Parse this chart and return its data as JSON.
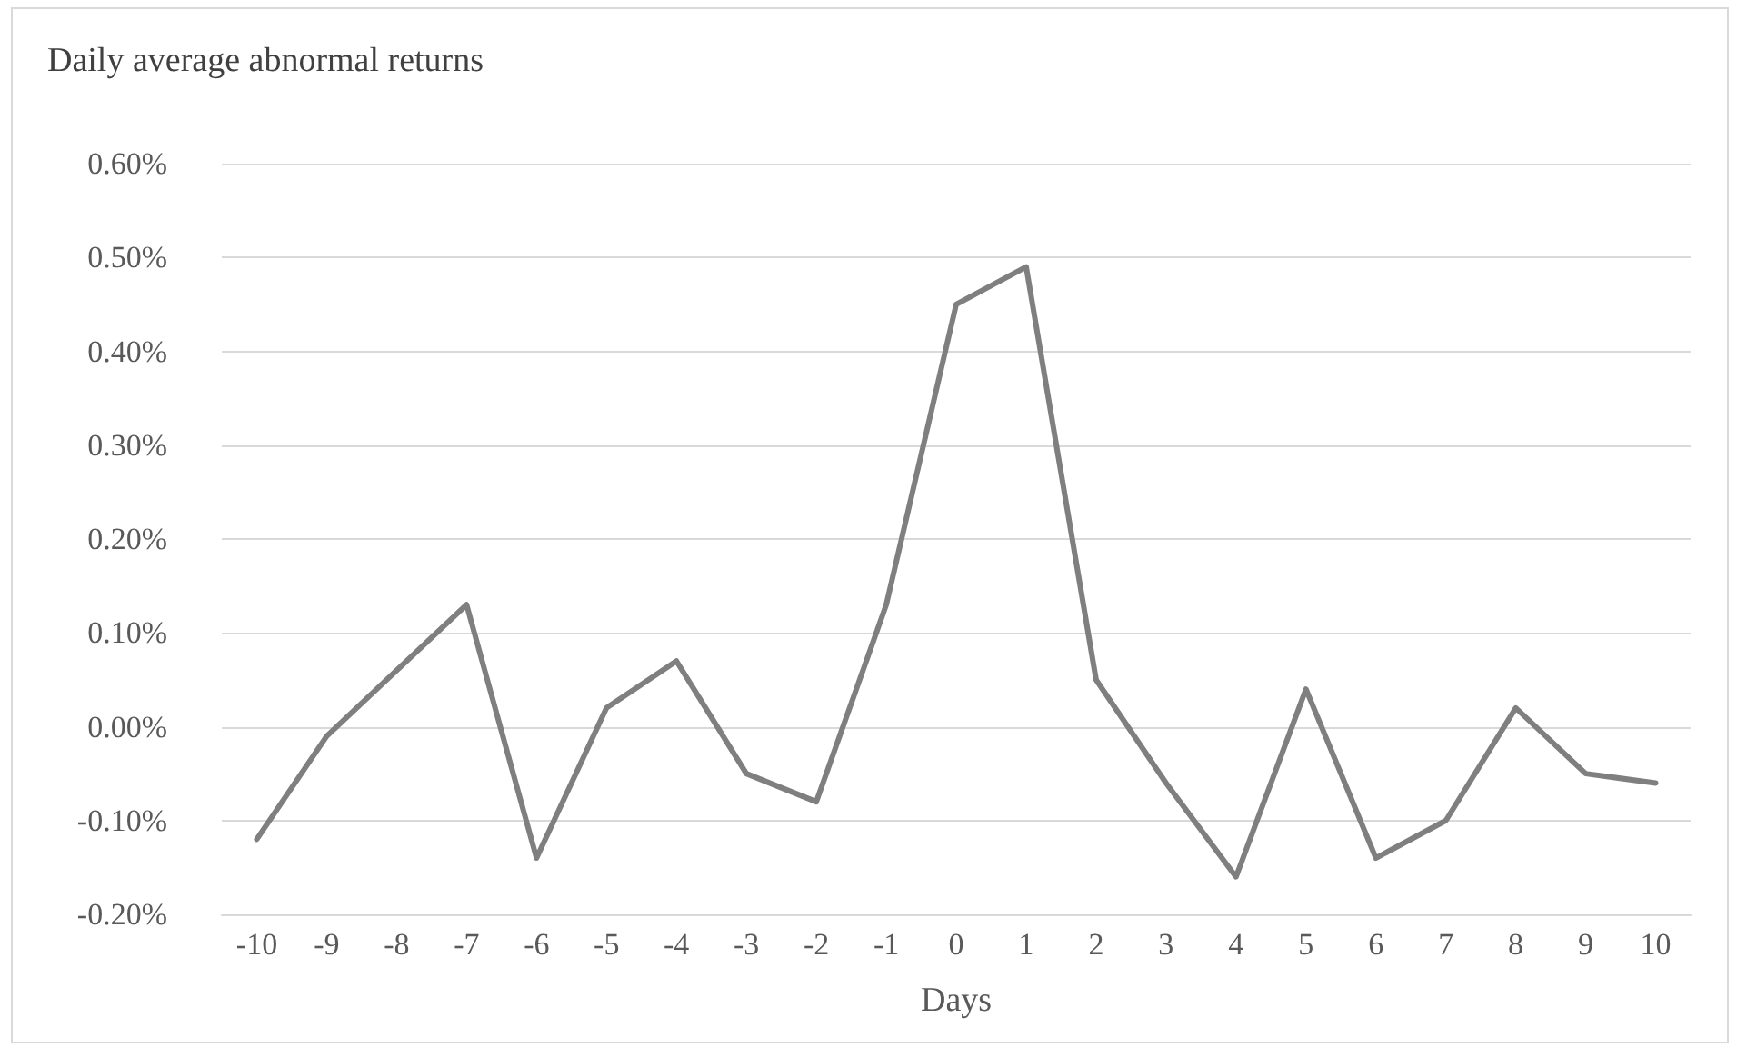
{
  "chart_data": {
    "type": "line",
    "title": "Daily average abnormal returns",
    "xlabel": "Days",
    "categories": [
      "-10",
      "-9",
      "-8",
      "-7",
      "-6",
      "-5",
      "-4",
      "-3",
      "-2",
      "-1",
      "0",
      "1",
      "2",
      "3",
      "4",
      "5",
      "6",
      "7",
      "8",
      "9",
      "10"
    ],
    "series": [
      {
        "color": "#7f7f7f",
        "values": [
          -0.12,
          -0.01,
          0.06,
          0.13,
          -0.14,
          0.02,
          0.07,
          -0.05,
          -0.08,
          0.13,
          0.45,
          0.49,
          0.05,
          -0.06,
          -0.16,
          0.04,
          -0.14,
          -0.1,
          0.02,
          -0.05,
          -0.06
        ]
      }
    ],
    "ylim": [
      -0.2,
      0.6
    ],
    "yticks": [
      {
        "value": -0.2,
        "label": "-0.20%"
      },
      {
        "value": -0.1,
        "label": "-0.10%"
      },
      {
        "value": 0,
        "label": "0.00%"
      },
      {
        "value": 0.1,
        "label": "0.10%"
      },
      {
        "value": 0.2,
        "label": "0.20%"
      },
      {
        "value": 0.3,
        "label": "0.30%"
      },
      {
        "value": 0.4,
        "label": "0.40%"
      },
      {
        "value": 0.5,
        "label": "0.50%"
      },
      {
        "value": 0.6,
        "label": "0.60%"
      }
    ],
    "grid": "y",
    "marker": "none",
    "line_style": "solid"
  }
}
